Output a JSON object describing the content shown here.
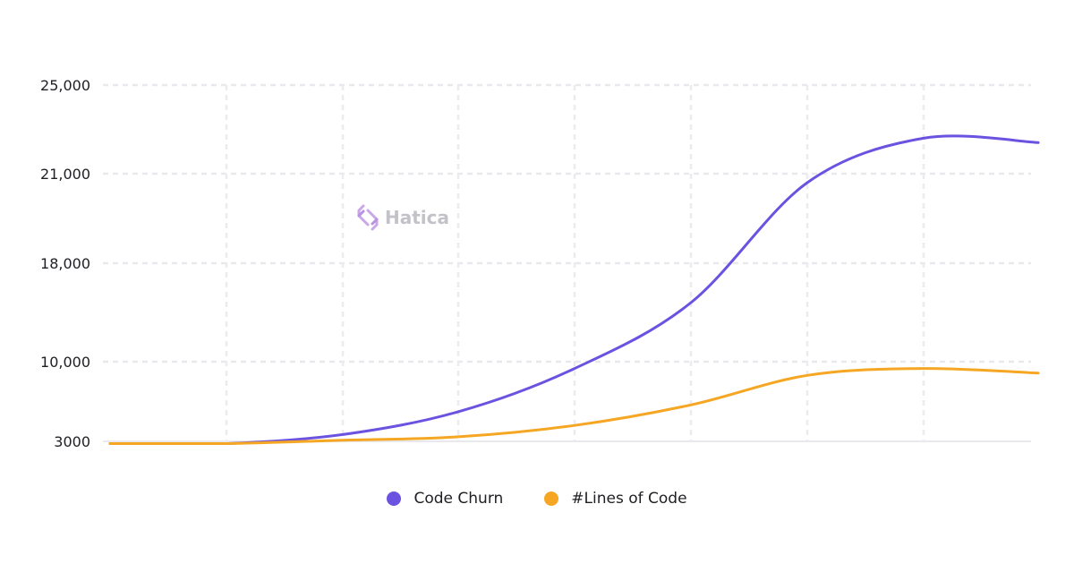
{
  "chart_data": {
    "type": "line",
    "title": "",
    "xlabel": "",
    "ylabel": "",
    "x": [
      1,
      2,
      3,
      4,
      5,
      6,
      7,
      8,
      9
    ],
    "y_ticks": [
      3000,
      10000,
      18000,
      21000,
      25000
    ],
    "y_tick_labels": [
      "3000",
      "10,000",
      "18,000",
      "21,000",
      "25,000"
    ],
    "y_scale": "piecewise-linear between labeled ticks",
    "grid": true,
    "legend_position": "bottom-center",
    "series": [
      {
        "name": "Code Churn",
        "color": "#6b52e0",
        "values": [
          2800,
          2800,
          3600,
          5600,
          9400,
          14800,
          20700,
          22600,
          22400
        ]
      },
      {
        "name": "#Lines of Code",
        "color": "#f5a623",
        "values": [
          2800,
          2800,
          3100,
          3400,
          4400,
          6200,
          8800,
          9400,
          9000
        ]
      }
    ]
  },
  "watermark": {
    "text": "Hatica",
    "icon": "hatica-logo-icon",
    "color": "#c2c2c8"
  }
}
